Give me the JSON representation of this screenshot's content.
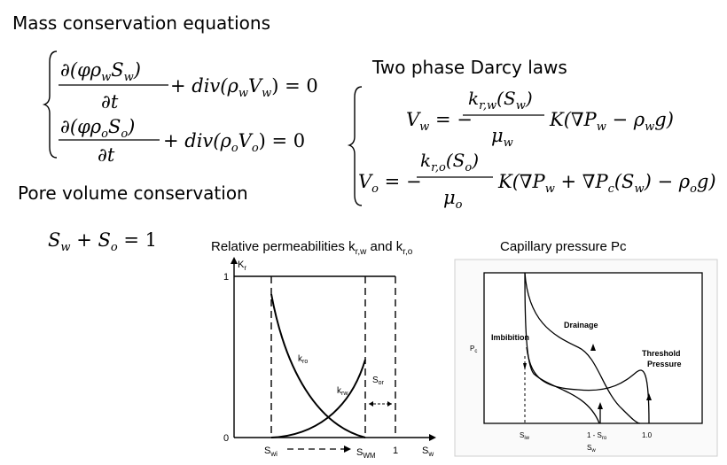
{
  "headings": {
    "mass": "Mass conservation equations",
    "darcy": "Two phase Darcy laws",
    "pore": "Pore volume conservation"
  },
  "equations": {
    "mass_water_num": "∂(φρ_w S_w)",
    "mass_oil_num": "∂(φρ_o S_o)",
    "mass_den": "∂t",
    "div_water": "+ div(ρ_w V_w) = 0",
    "div_oil": "+ div(ρ_o V_o) = 0",
    "darcy_water_lhs": "V_w = −",
    "darcy_water_num": "k_r,w(S_w)",
    "darcy_water_den": "μ_w",
    "darcy_water_rhs": "K(∇P_w − ρ_w g)",
    "darcy_oil_lhs": "V_o = −",
    "darcy_oil_num": "k_r,o(S_o)",
    "darcy_oil_den": "μ_o",
    "darcy_oil_rhs": "K(∇P_w + ∇P_c(S_w) − ρ_o g)",
    "pore": "S_w + S_o = 1"
  },
  "relperm": {
    "title": "Relative permeabilities k",
    "title_sub1": "r,w",
    "title_mid": " and k",
    "title_sub2": "r,o",
    "y_axis": "K",
    "y_axis_sub": "r",
    "tick_one": "1",
    "tick_zero": "0",
    "x_axis": "S",
    "x_axis_sub": "w",
    "swi": "S",
    "swi_sub": "wi",
    "swm": "S",
    "swm_sub": "WM",
    "x_one": "1",
    "kro": "k",
    "kro_sub": "ro",
    "krw": "k",
    "krw_sub": "rw",
    "sor": "S",
    "sor_sub": "or"
  },
  "capillary": {
    "title": "Capillary pressure Pc",
    "y_axis": "P",
    "y_axis_sub": "c",
    "imbibition": "Imbibition",
    "drainage": "Drainage",
    "threshold1": "Threshold",
    "threshold2": "Pressure",
    "x_siw": "S",
    "x_siw_sub": "iw",
    "x_sro": "1 - S",
    "x_sro_sub": "ro",
    "x_one": "1.0",
    "x_axis": "S",
    "x_axis_sub": "w"
  }
}
